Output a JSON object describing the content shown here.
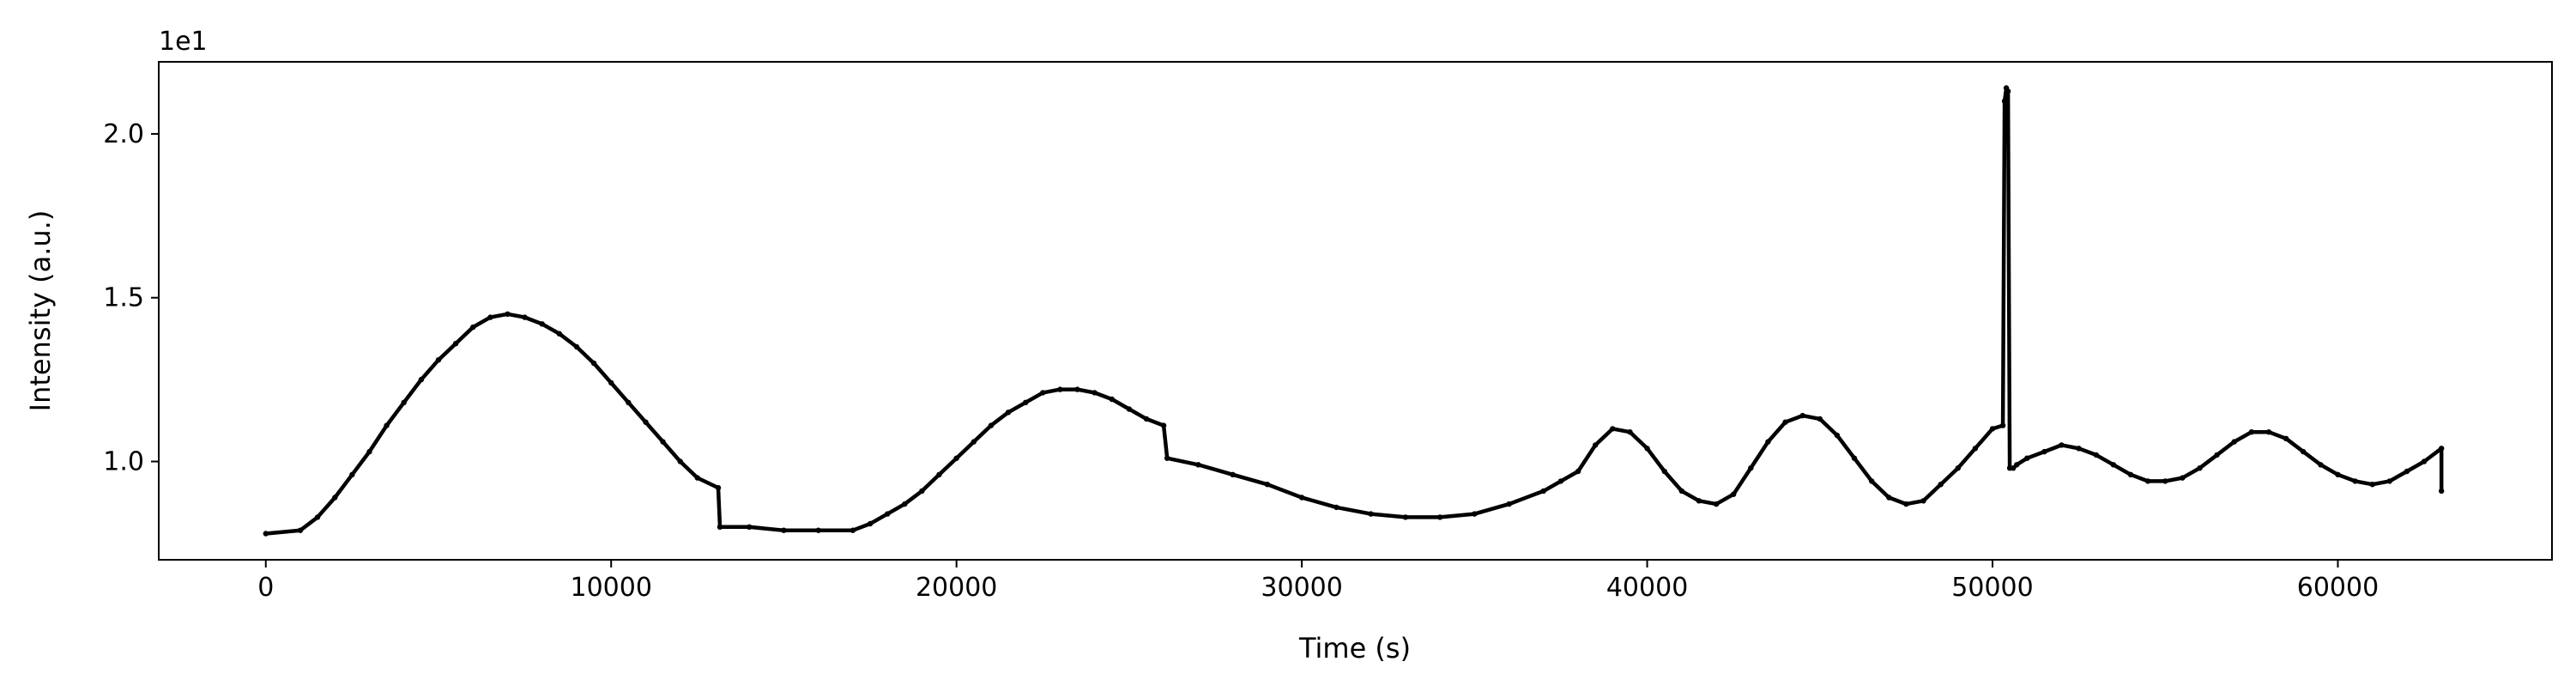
{
  "chart_data": {
    "type": "line",
    "title": "",
    "xlabel": "Time (s)",
    "ylabel": "Intensity (a.u.)",
    "y_offset_label": "1e1",
    "xlim": [
      -3100,
      66200
    ],
    "ylim": [
      0.7,
      2.22
    ],
    "grid": false,
    "x_ticks": [
      0,
      10000,
      20000,
      30000,
      40000,
      50000,
      60000
    ],
    "x_tick_labels": [
      "0",
      "10000",
      "20000",
      "30000",
      "40000",
      "50000",
      "60000"
    ],
    "y_ticks": [
      1.0,
      1.5,
      2.0
    ],
    "y_tick_labels": [
      "1.0",
      "1.5",
      "2.0"
    ],
    "series": [
      {
        "color": "#000000",
        "x": [
          0,
          1000,
          1500,
          2000,
          2500,
          3000,
          3500,
          4000,
          4500,
          5000,
          5500,
          6000,
          6500,
          7000,
          7500,
          8000,
          8500,
          9000,
          9500,
          10000,
          10500,
          11000,
          11500,
          12000,
          12500,
          13100,
          13150,
          14000,
          15000,
          16000,
          17000,
          17500,
          18000,
          18500,
          19000,
          19500,
          20000,
          20500,
          21000,
          21500,
          22000,
          22500,
          23000,
          23500,
          24000,
          24500,
          25000,
          25500,
          26000,
          26100,
          27000,
          28000,
          29000,
          30000,
          31000,
          32000,
          33000,
          34000,
          35000,
          36000,
          37000,
          37500,
          38000,
          38500,
          39000,
          39500,
          40000,
          40500,
          41000,
          41500,
          42000,
          42500,
          43000,
          43500,
          44000,
          44500,
          45000,
          45500,
          46000,
          46500,
          47000,
          47500,
          48000,
          48500,
          49000,
          49500,
          50000,
          50300,
          50350,
          50400,
          50450,
          50500,
          50600,
          50700,
          51000,
          51500,
          52000,
          52500,
          53000,
          53500,
          54000,
          54500,
          55000,
          55500,
          56000,
          56500,
          57000,
          57500,
          58000,
          58500,
          59000,
          59500,
          60000,
          60500,
          61000,
          61500,
          62000,
          62500,
          63000,
          63000
        ],
        "values": [
          0.78,
          0.79,
          0.83,
          0.89,
          0.96,
          1.03,
          1.11,
          1.18,
          1.25,
          1.31,
          1.36,
          1.41,
          1.44,
          1.45,
          1.44,
          1.42,
          1.39,
          1.35,
          1.3,
          1.24,
          1.18,
          1.12,
          1.06,
          1.0,
          0.95,
          0.92,
          0.8,
          0.8,
          0.79,
          0.79,
          0.79,
          0.81,
          0.84,
          0.87,
          0.91,
          0.96,
          1.01,
          1.06,
          1.11,
          1.15,
          1.18,
          1.21,
          1.22,
          1.22,
          1.21,
          1.19,
          1.16,
          1.13,
          1.11,
          1.01,
          0.99,
          0.96,
          0.93,
          0.89,
          0.86,
          0.84,
          0.83,
          0.83,
          0.84,
          0.87,
          0.91,
          0.94,
          0.97,
          1.05,
          1.1,
          1.09,
          1.04,
          0.97,
          0.91,
          0.88,
          0.87,
          0.9,
          0.98,
          1.06,
          1.12,
          1.14,
          1.13,
          1.08,
          1.01,
          0.94,
          0.89,
          0.87,
          0.88,
          0.93,
          0.98,
          1.04,
          1.1,
          1.11,
          2.1,
          2.14,
          2.13,
          0.98,
          0.98,
          0.99,
          1.01,
          1.03,
          1.05,
          1.04,
          1.02,
          0.99,
          0.96,
          0.94,
          0.94,
          0.95,
          0.98,
          1.02,
          1.06,
          1.09,
          1.09,
          1.07,
          1.03,
          0.99,
          0.96,
          0.94,
          0.93,
          0.94,
          0.97,
          1.0,
          1.04,
          0.91
        ]
      }
    ]
  }
}
